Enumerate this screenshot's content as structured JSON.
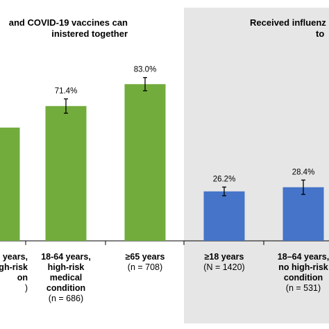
{
  "chart_data": {
    "type": "bar",
    "ylim": [
      0,
      100
    ],
    "colors": {
      "group1": "#72ac3c",
      "group2": "#4574c8",
      "panel_bg": "#e6e6e6"
    },
    "panels": [
      {
        "title_lines": [
          "and COVID-19 vaccines can",
          "inistered together"
        ],
        "color": "#72ac3c",
        "bars": [
          {
            "category_lines": [
              "years,",
              "high-risk",
              "on"
            ],
            "n_label": ")",
            "value": 60.0,
            "value_label": "",
            "error": [
              null,
              null
            ]
          },
          {
            "category_lines": [
              "18-64 years,",
              "high-risk",
              "medical",
              "condition"
            ],
            "n_label": "(n = 686)",
            "value": 71.4,
            "value_label": "71.4%",
            "error": [
              67.6,
              75.2
            ]
          },
          {
            "category_lines": [
              "≥65 years"
            ],
            "n_label": "(n = 708)",
            "value": 83.0,
            "value_label": "83.0%",
            "error": [
              79.5,
              86.5
            ]
          }
        ]
      },
      {
        "title_lines": [
          "Received influenz",
          "to"
        ],
        "color": "#4574c8",
        "bars": [
          {
            "category_lines": [
              "≥18 years"
            ],
            "n_label": "(N = 1420)",
            "value": 26.2,
            "value_label": "26.2%",
            "error": [
              23.9,
              28.5
            ]
          },
          {
            "category_lines": [
              "18–64 years,",
              "no high-risk",
              "condition"
            ],
            "n_label": "(n = 531)",
            "value": 28.4,
            "value_label": "28.4%",
            "error": [
              24.6,
              32.2
            ]
          }
        ]
      }
    ]
  }
}
